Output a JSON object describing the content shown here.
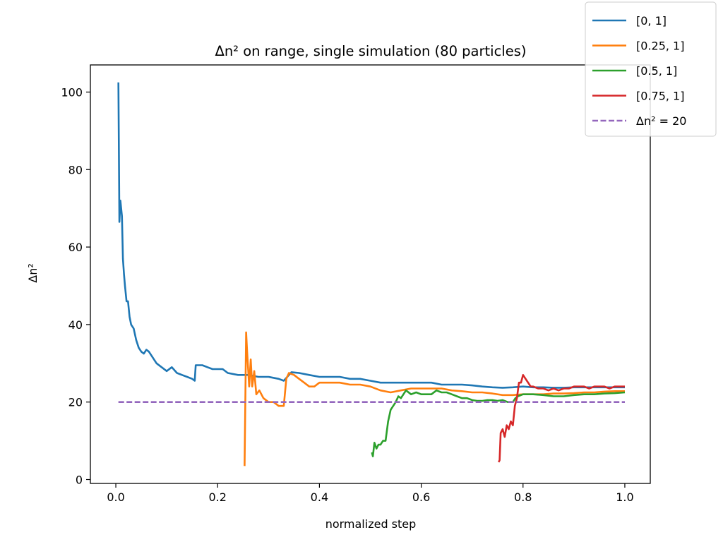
{
  "chart_data": {
    "type": "line",
    "title": "Δn² on range, single simulation (80 particles)",
    "xlabel": "normalized step",
    "ylabel": "Δn²",
    "xlim": [
      -0.05,
      1.05
    ],
    "ylim": [
      -1,
      107
    ],
    "xticks": [
      0.0,
      0.2,
      0.4,
      0.6,
      0.8,
      1.0
    ],
    "xtick_labels": [
      "0.0",
      "0.2",
      "0.4",
      "0.6",
      "0.8",
      "1.0"
    ],
    "yticks": [
      0,
      20,
      40,
      60,
      80,
      100
    ],
    "ytick_labels": [
      "0",
      "20",
      "40",
      "60",
      "80",
      "100"
    ],
    "grid": false,
    "legend_position": "top-right, outside plot area",
    "series": [
      {
        "name": "[0, 1]",
        "color": "#1f77b4",
        "style": "solid",
        "points": [
          [
            0.005,
            102.5
          ],
          [
            0.007,
            66.5
          ],
          [
            0.009,
            72
          ],
          [
            0.012,
            68
          ],
          [
            0.014,
            57
          ],
          [
            0.016,
            53
          ],
          [
            0.018,
            50
          ],
          [
            0.021,
            46
          ],
          [
            0.024,
            46
          ],
          [
            0.027,
            42
          ],
          [
            0.03,
            40
          ],
          [
            0.035,
            39
          ],
          [
            0.04,
            36
          ],
          [
            0.045,
            34
          ],
          [
            0.05,
            33
          ],
          [
            0.055,
            32.5
          ],
          [
            0.06,
            33.5
          ],
          [
            0.065,
            33
          ],
          [
            0.07,
            32
          ],
          [
            0.075,
            31
          ],
          [
            0.08,
            30
          ],
          [
            0.09,
            29
          ],
          [
            0.1,
            28
          ],
          [
            0.11,
            29
          ],
          [
            0.12,
            27.5
          ],
          [
            0.13,
            27
          ],
          [
            0.14,
            26.5
          ],
          [
            0.15,
            26
          ],
          [
            0.155,
            25.5
          ],
          [
            0.157,
            29.5
          ],
          [
            0.165,
            29.5
          ],
          [
            0.17,
            29.5
          ],
          [
            0.18,
            29
          ],
          [
            0.19,
            28.5
          ],
          [
            0.2,
            28.5
          ],
          [
            0.21,
            28.5
          ],
          [
            0.22,
            27.5
          ],
          [
            0.24,
            27
          ],
          [
            0.26,
            27
          ],
          [
            0.28,
            26.5
          ],
          [
            0.3,
            26.5
          ],
          [
            0.32,
            26
          ],
          [
            0.33,
            25.5
          ],
          [
            0.345,
            27.7
          ],
          [
            0.36,
            27.5
          ],
          [
            0.38,
            27
          ],
          [
            0.4,
            26.5
          ],
          [
            0.42,
            26.5
          ],
          [
            0.44,
            26.5
          ],
          [
            0.46,
            26
          ],
          [
            0.48,
            26
          ],
          [
            0.5,
            25.5
          ],
          [
            0.52,
            25
          ],
          [
            0.54,
            25
          ],
          [
            0.56,
            25
          ],
          [
            0.58,
            25
          ],
          [
            0.6,
            25
          ],
          [
            0.62,
            25
          ],
          [
            0.64,
            24.5
          ],
          [
            0.66,
            24.5
          ],
          [
            0.68,
            24.5
          ],
          [
            0.7,
            24.3
          ],
          [
            0.72,
            24
          ],
          [
            0.74,
            23.8
          ],
          [
            0.76,
            23.7
          ],
          [
            0.78,
            23.8
          ],
          [
            0.8,
            24
          ],
          [
            0.82,
            23.8
          ],
          [
            0.84,
            23.8
          ],
          [
            0.86,
            23.7
          ],
          [
            0.88,
            23.7
          ],
          [
            0.9,
            23.8
          ],
          [
            0.92,
            23.8
          ],
          [
            0.94,
            23.8
          ],
          [
            0.96,
            23.8
          ],
          [
            0.98,
            23.8
          ],
          [
            1.0,
            23.8
          ]
        ]
      },
      {
        "name": "[0.25, 1]",
        "color": "#ff7f0e",
        "style": "solid",
        "points": [
          [
            0.253,
            3.5
          ],
          [
            0.256,
            38
          ],
          [
            0.258,
            33
          ],
          [
            0.262,
            24
          ],
          [
            0.265,
            31
          ],
          [
            0.268,
            24
          ],
          [
            0.272,
            28
          ],
          [
            0.276,
            22
          ],
          [
            0.282,
            23
          ],
          [
            0.29,
            21
          ],
          [
            0.3,
            20
          ],
          [
            0.31,
            20
          ],
          [
            0.32,
            19
          ],
          [
            0.33,
            19
          ],
          [
            0.335,
            26
          ],
          [
            0.34,
            27.5
          ],
          [
            0.35,
            27
          ],
          [
            0.36,
            26
          ],
          [
            0.37,
            25
          ],
          [
            0.38,
            24
          ],
          [
            0.39,
            24
          ],
          [
            0.4,
            25
          ],
          [
            0.42,
            25
          ],
          [
            0.44,
            25
          ],
          [
            0.46,
            24.5
          ],
          [
            0.48,
            24.5
          ],
          [
            0.5,
            24
          ],
          [
            0.52,
            23
          ],
          [
            0.54,
            22.5
          ],
          [
            0.56,
            23
          ],
          [
            0.58,
            23.5
          ],
          [
            0.6,
            23.5
          ],
          [
            0.62,
            23.5
          ],
          [
            0.64,
            23.5
          ],
          [
            0.66,
            23
          ],
          [
            0.68,
            22.8
          ],
          [
            0.7,
            22.5
          ],
          [
            0.72,
            22.5
          ],
          [
            0.74,
            22.2
          ],
          [
            0.76,
            21.8
          ],
          [
            0.78,
            21.8
          ],
          [
            0.8,
            22
          ],
          [
            0.82,
            22
          ],
          [
            0.84,
            22
          ],
          [
            0.86,
            22.2
          ],
          [
            0.88,
            22.2
          ],
          [
            0.9,
            22.3
          ],
          [
            0.92,
            22.5
          ],
          [
            0.94,
            22.5
          ],
          [
            0.96,
            22.7
          ],
          [
            0.98,
            22.8
          ],
          [
            1.0,
            22.8
          ]
        ]
      },
      {
        "name": "[0.5, 1]",
        "color": "#2ca02c",
        "style": "solid",
        "points": [
          [
            0.503,
            7
          ],
          [
            0.505,
            6
          ],
          [
            0.508,
            9.5
          ],
          [
            0.512,
            8
          ],
          [
            0.516,
            9
          ],
          [
            0.52,
            9
          ],
          [
            0.525,
            10
          ],
          [
            0.53,
            10
          ],
          [
            0.535,
            15
          ],
          [
            0.54,
            18
          ],
          [
            0.545,
            19
          ],
          [
            0.55,
            20
          ],
          [
            0.555,
            21.5
          ],
          [
            0.56,
            21
          ],
          [
            0.565,
            22
          ],
          [
            0.57,
            23
          ],
          [
            0.58,
            22
          ],
          [
            0.59,
            22.5
          ],
          [
            0.6,
            22
          ],
          [
            0.61,
            22
          ],
          [
            0.62,
            22
          ],
          [
            0.63,
            23
          ],
          [
            0.64,
            22.5
          ],
          [
            0.65,
            22.5
          ],
          [
            0.66,
            22
          ],
          [
            0.67,
            21.5
          ],
          [
            0.68,
            21
          ],
          [
            0.69,
            21
          ],
          [
            0.7,
            20.5
          ],
          [
            0.71,
            20.3
          ],
          [
            0.72,
            20.3
          ],
          [
            0.73,
            20.5
          ],
          [
            0.74,
            20.5
          ],
          [
            0.75,
            20.3
          ],
          [
            0.76,
            20.5
          ],
          [
            0.77,
            20
          ],
          [
            0.78,
            20
          ],
          [
            0.785,
            21
          ],
          [
            0.79,
            21.5
          ],
          [
            0.8,
            22
          ],
          [
            0.82,
            22
          ],
          [
            0.84,
            21.8
          ],
          [
            0.86,
            21.5
          ],
          [
            0.88,
            21.5
          ],
          [
            0.9,
            21.8
          ],
          [
            0.92,
            22
          ],
          [
            0.94,
            22
          ],
          [
            0.96,
            22.2
          ],
          [
            0.98,
            22.3
          ],
          [
            1.0,
            22.5
          ]
        ]
      },
      {
        "name": "[0.75, 1]",
        "color": "#d62728",
        "style": "solid",
        "points": [
          [
            0.752,
            4.5
          ],
          [
            0.754,
            5
          ],
          [
            0.756,
            12
          ],
          [
            0.76,
            13
          ],
          [
            0.764,
            11
          ],
          [
            0.768,
            14
          ],
          [
            0.772,
            13
          ],
          [
            0.776,
            15
          ],
          [
            0.78,
            14
          ],
          [
            0.784,
            19
          ],
          [
            0.788,
            21
          ],
          [
            0.792,
            25
          ],
          [
            0.796,
            25
          ],
          [
            0.8,
            27
          ],
          [
            0.805,
            26
          ],
          [
            0.81,
            25
          ],
          [
            0.815,
            24
          ],
          [
            0.82,
            24
          ],
          [
            0.83,
            23.5
          ],
          [
            0.84,
            23.5
          ],
          [
            0.85,
            23
          ],
          [
            0.86,
            23.5
          ],
          [
            0.87,
            23
          ],
          [
            0.88,
            23.5
          ],
          [
            0.89,
            23.5
          ],
          [
            0.9,
            24
          ],
          [
            0.91,
            24
          ],
          [
            0.92,
            24
          ],
          [
            0.93,
            23.5
          ],
          [
            0.94,
            24
          ],
          [
            0.95,
            24
          ],
          [
            0.96,
            24
          ],
          [
            0.97,
            23.5
          ],
          [
            0.98,
            24
          ],
          [
            0.99,
            24
          ],
          [
            1.0,
            24
          ]
        ]
      },
      {
        "name": "Δn² = 20",
        "color": "#9467bd",
        "style": "dashed",
        "points": [
          [
            0.005,
            20
          ],
          [
            1.0,
            20
          ]
        ]
      }
    ]
  }
}
